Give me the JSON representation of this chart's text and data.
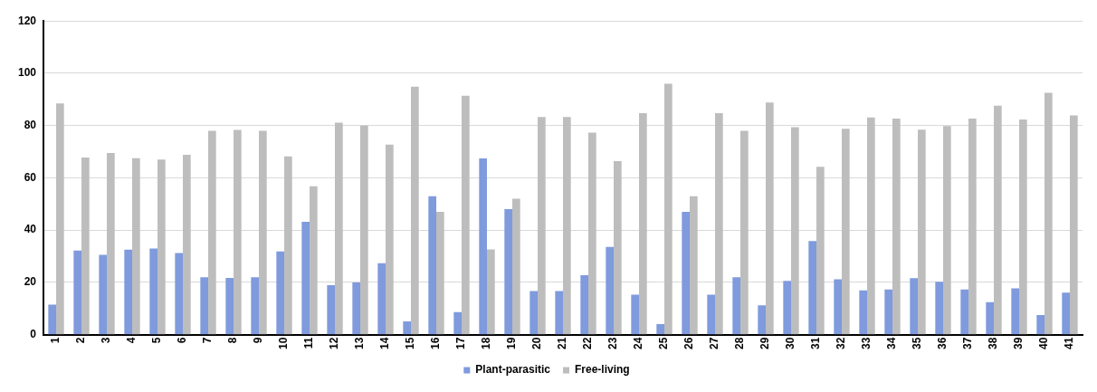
{
  "chart_data": {
    "type": "bar",
    "categories": [
      "1",
      "2",
      "3",
      "4",
      "5",
      "6",
      "7",
      "8",
      "9",
      "10",
      "11",
      "12",
      "13",
      "14",
      "15",
      "16",
      "17",
      "18",
      "19",
      "20",
      "21",
      "22",
      "23",
      "24",
      "25",
      "26",
      "27",
      "28",
      "29",
      "30",
      "31",
      "32",
      "33",
      "34",
      "35",
      "36",
      "37",
      "38",
      "39",
      "40",
      "41"
    ],
    "series": [
      {
        "name": "Plant-parasitic",
        "color": "#7f9add",
        "values": [
          11.5,
          32.2,
          30.5,
          32.5,
          33,
          31.2,
          22,
          21.7,
          22,
          31.8,
          43.2,
          18.9,
          20,
          27.3,
          5.1,
          53,
          8.6,
          67.4,
          48,
          16.7,
          16.7,
          22.7,
          33.6,
          15.3,
          4,
          47,
          15.3,
          22,
          11.2,
          20.6,
          35.8,
          21.2,
          16.9,
          17.3,
          21.6,
          20.2,
          17.3,
          12.4,
          17.7,
          7.5,
          16.1
        ]
      },
      {
        "name": "Free-living",
        "color": "#bdbdbd",
        "values": [
          88.5,
          67.8,
          69.5,
          67.5,
          67,
          68.8,
          78,
          78.3,
          78,
          68.2,
          56.8,
          81.1,
          80,
          72.7,
          94.9,
          47,
          91.4,
          32.6,
          52,
          83.3,
          83.3,
          77.3,
          66.4,
          84.7,
          96,
          53,
          84.7,
          78,
          88.8,
          79.4,
          64.2,
          78.8,
          83.1,
          82.7,
          78.4,
          79.8,
          82.7,
          87.6,
          82.3,
          92.5,
          83.9
        ]
      }
    ],
    "ylim": [
      0,
      120
    ],
    "yticks": [
      0,
      20,
      40,
      60,
      80,
      100,
      120
    ],
    "grid": "y",
    "legend": "bottom"
  }
}
